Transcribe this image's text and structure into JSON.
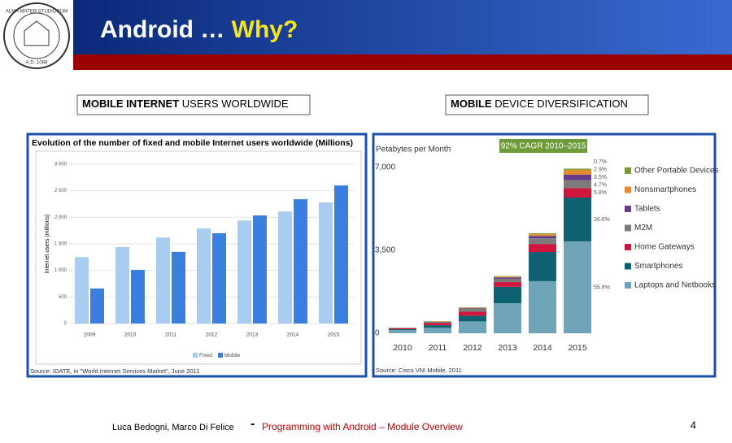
{
  "logo": {
    "text_top": "ALMA MATER STUDIORUM",
    "text_bottom": "A.D. 1088"
  },
  "header": {
    "title": "Android …",
    "title_highlight": "Why?"
  },
  "captions": [
    {
      "bold": "MOBILE INTERNET",
      "rest": "USERS WORLDWIDE"
    },
    {
      "bold": "MOBILE",
      "rest": "DEVICE DIVERSIFICATION"
    }
  ],
  "chart_data": [
    {
      "type": "bar",
      "title": "Evolution of the number of fixed and mobile Internet users worldwide (Millions)",
      "y_label": "Internet users (millions)",
      "categories": [
        "2009",
        "2010",
        "2011",
        "2012",
        "2013",
        "2014",
        "2015"
      ],
      "series": [
        {
          "name": "Fixed",
          "color": "#a9cdf0",
          "values": [
            1250,
            1440,
            1620,
            1790,
            1940,
            2110,
            2280
          ]
        },
        {
          "name": "Mobile",
          "color": "#3a7fe0",
          "values": [
            660,
            1010,
            1350,
            1700,
            2035,
            2340,
            2600
          ]
        }
      ],
      "ylim": [
        0,
        3000
      ],
      "yticks": [
        0,
        500,
        {
          "value": 1000,
          "label": "1 000"
        },
        {
          "value": 1500,
          "label": "1 500"
        },
        {
          "value": 2000,
          "label": "2 000"
        },
        {
          "value": 2500,
          "label": "2 500"
        },
        {
          "value": 3000,
          "label": "3 000"
        }
      ],
      "grid": true,
      "legend": "bottom",
      "source": "Source: IDATE, in \"World Internet Services Market\", June 2011"
    },
    {
      "type": "stacked_bar",
      "y_label": "Petabytes per Month",
      "annotation": "92% CAGR 2010–2015",
      "categories": [
        "2010",
        "2011",
        "2012",
        "2013",
        "2014",
        "2015"
      ],
      "series": [
        {
          "name": "Laptops and Netbooks",
          "color": "#6fa3b8",
          "values": [
            130,
            240,
            500,
            1270,
            2200,
            3880
          ]
        },
        {
          "name": "Smartphones",
          "color": "#0e6170",
          "values": [
            40,
            100,
            240,
            690,
            1230,
            1850
          ]
        },
        {
          "name": "Home Gateways",
          "color": "#d0163e",
          "values": [
            40,
            100,
            170,
            200,
            340,
            400
          ]
        },
        {
          "name": "M2M",
          "color": "#7c7c7c",
          "values": [
            20,
            40,
            140,
            140,
            240,
            330
          ]
        },
        {
          "name": "Tablets",
          "color": "#6a3a8a",
          "values": [
            2,
            10,
            20,
            60,
            100,
            240
          ]
        },
        {
          "name": "Nonsmartphones",
          "color": "#e48b2c",
          "values": [
            5,
            15,
            20,
            30,
            70,
            200
          ]
        },
        {
          "name": "Other Portable Devices",
          "color": "#7e9a32",
          "values": [
            3,
            5,
            10,
            20,
            40,
            50
          ]
        }
      ],
      "share_labels": [
        "55.8%",
        "26.6%",
        "5.8%",
        "4.7%",
        "3.5%",
        "2.9%",
        "0.7%"
      ],
      "ylim": [
        0,
        7000
      ],
      "yticks": [
        0,
        {
          "value": 3500,
          "label": "3,500"
        },
        {
          "value": 7000,
          "label": "7,000"
        }
      ],
      "grid": false,
      "legend": "right",
      "source": "Source: Cisco VNI Mobile, 2011"
    }
  ],
  "footer": {
    "authors": "Luca Bedogni, Marco Di Felice",
    "separator": "-",
    "course": "Programming with Android – Module Overview",
    "page": 4
  }
}
